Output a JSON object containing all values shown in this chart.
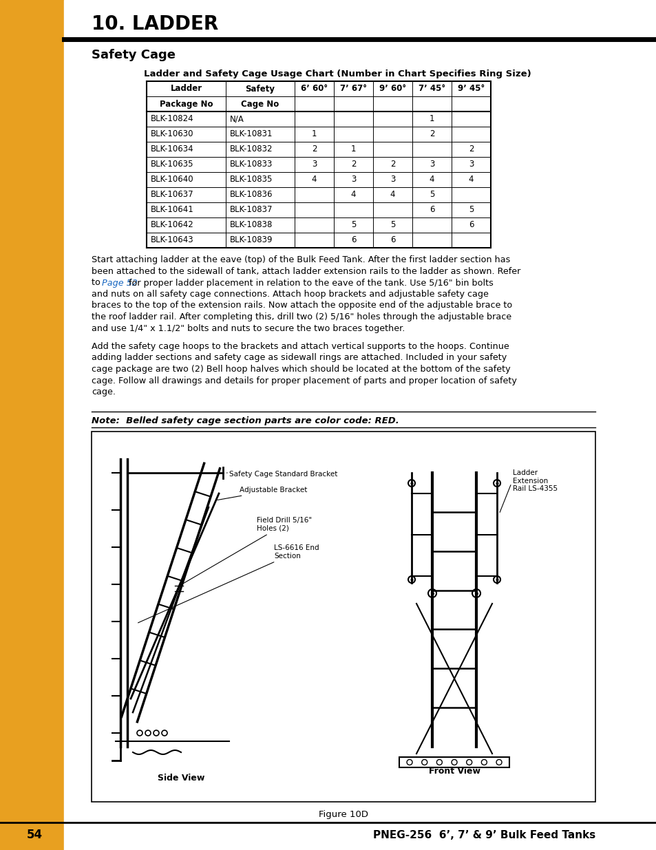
{
  "page_title": "10. LADDER",
  "section_title": "Safety Cage",
  "table_title": "Ladder and Safety Cage Usage Chart (Number in Chart Specifies Ring Size)",
  "col_headers_row1": [
    "Ladder",
    "Safety",
    "6’ 60°",
    "7’ 67°",
    "9’ 60°",
    "7’ 45°",
    "9’ 45°"
  ],
  "col_headers_row2": [
    "Package No",
    "Cage No",
    "",
    "",
    "",
    "",
    ""
  ],
  "table_rows": [
    [
      "BLK-10824",
      "N/A",
      "",
      "",
      "",
      "1",
      ""
    ],
    [
      "BLK-10630",
      "BLK-10831",
      "1",
      "",
      "",
      "2",
      ""
    ],
    [
      "BLK-10634",
      "BLK-10832",
      "2",
      "1",
      "",
      "",
      "2"
    ],
    [
      "BLK-10635",
      "BLK-10833",
      "3",
      "2",
      "2",
      "3",
      "3"
    ],
    [
      "BLK-10640",
      "BLK-10835",
      "4",
      "3",
      "3",
      "4",
      "4"
    ],
    [
      "BLK-10637",
      "BLK-10836",
      "",
      "4",
      "4",
      "5",
      ""
    ],
    [
      "BLK-10641",
      "BLK-10837",
      "",
      "",
      "",
      "6",
      "5"
    ],
    [
      "BLK-10642",
      "BLK-10838",
      "",
      "5",
      "5",
      "",
      "6"
    ],
    [
      "BLK-10643",
      "BLK-10839",
      "",
      "6",
      "6",
      "",
      ""
    ]
  ],
  "para1_lines": [
    [
      "Start attaching ladder at the eave (top) of the Bulk Feed Tank. After the first ladder section has"
    ],
    [
      "been attached to the sidewall of tank, attach ladder extension rails to the ladder as shown. Refer"
    ],
    [
      "to ",
      "Page 52",
      " for proper ladder placement in relation to the eave of the tank. Use 5/16\" bin bolts"
    ],
    [
      "and nuts on all safety cage connections. Attach hoop brackets and adjustable safety cage"
    ],
    [
      "braces to the top of the extension rails. Now attach the opposite end of the adjustable brace to"
    ],
    [
      "the roof ladder rail. After completing this, drill two (2) 5/16\" holes through the adjustable brace"
    ],
    [
      "and use 1/4\" x 1.1/2\" bolts and nuts to secure the two braces together."
    ]
  ],
  "para2_lines": [
    "Add the safety cage hoops to the brackets and attach vertical supports to the hoops. Continue",
    "adding ladder sections and safety cage as sidewall rings are attached. Included in your safety",
    "cage package are two (2) Bell hoop halves which should be located at the bottom of the safety",
    "cage. Follow all drawings and details for proper placement of parts and proper location of safety",
    "cage."
  ],
  "note_text": "Note:  Belled safety cage section parts are color code: RED.",
  "figure_caption": "Figure 10D",
  "sidebar_color": "#E8A020",
  "page_number": "54",
  "footer_text": "PNEG-256  6’, 7’ & 9’ Bulk Feed Tanks",
  "bg_color": "#ffffff",
  "link_color": "#1565C0"
}
